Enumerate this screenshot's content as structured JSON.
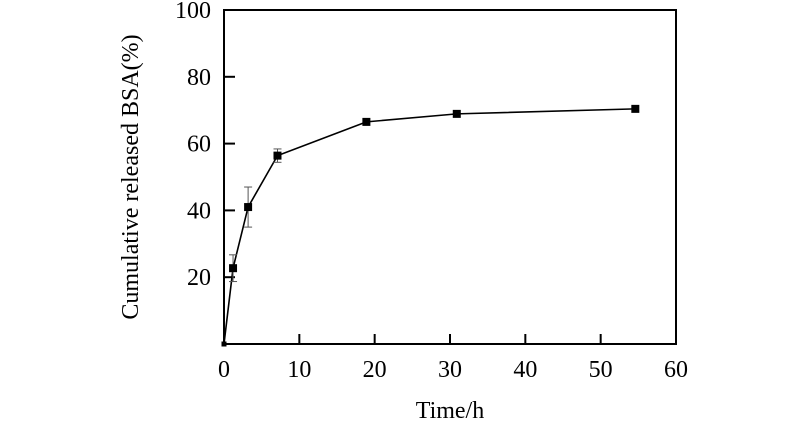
{
  "chart_data": {
    "type": "line",
    "title": "",
    "xlabel": "Time/h",
    "ylabel": "Cumulative released BSA(%)",
    "xlim": [
      0,
      60
    ],
    "ylim": [
      0,
      100
    ],
    "xticks": [
      0,
      10,
      20,
      30,
      40,
      50,
      60
    ],
    "yticks": [
      20,
      40,
      60,
      80,
      100
    ],
    "grid": false,
    "marker": "square",
    "color": "#000000",
    "errorbar_color": "#555555",
    "series": [
      {
        "x": [
          0,
          1.2,
          3.2,
          7.1,
          18.9,
          30.9,
          54.6
        ],
        "y": [
          0,
          22.7,
          41,
          56.4,
          66.5,
          68.9,
          70.4
        ],
        "error": [
          0,
          4,
          6,
          2,
          0,
          0,
          0
        ]
      }
    ]
  }
}
